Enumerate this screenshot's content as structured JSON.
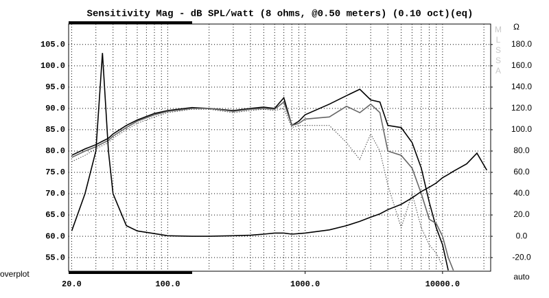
{
  "chart_data": {
    "type": "line",
    "title": "Sensitivity Mag - dB SPL/watt (8 ohms, @0.50 meters) (0.10 oct)(eq)",
    "unit_label": "Ω",
    "watermark": [
      "M",
      "L",
      "S",
      "S",
      "A"
    ],
    "bottom_left_label": "overplot",
    "y2_bottom_label": "auto",
    "x_log": true,
    "grid": true,
    "xlim": [
      19,
      22400
    ],
    "xticks": [
      {
        "value": 20,
        "label": "20.0"
      },
      {
        "value": 100,
        "label": "100.0"
      },
      {
        "value": 1000,
        "label": "1000.0"
      },
      {
        "value": 10000,
        "label": "10000.0"
      }
    ],
    "x_grid": [
      20,
      30,
      40,
      50,
      60,
      70,
      80,
      90,
      100,
      200,
      300,
      400,
      500,
      600,
      700,
      800,
      900,
      1000,
      2000,
      3000,
      4000,
      5000,
      6000,
      7000,
      8000,
      9000,
      10000,
      20000
    ],
    "ylim": [
      51.8,
      109.8
    ],
    "yticks": [
      {
        "value": 55,
        "label": "55.0"
      },
      {
        "value": 60,
        "label": "60.0"
      },
      {
        "value": 65,
        "label": "65.0"
      },
      {
        "value": 70,
        "label": "70.0"
      },
      {
        "value": 75,
        "label": "75.0"
      },
      {
        "value": 80,
        "label": "80.0"
      },
      {
        "value": 85,
        "label": "85.0"
      },
      {
        "value": 90,
        "label": "90.0"
      },
      {
        "value": 95,
        "label": "95.0"
      },
      {
        "value": 100,
        "label": "100.0"
      },
      {
        "value": 105,
        "label": "105.0"
      }
    ],
    "y2lim": [
      -32.8,
      199.2
    ],
    "y2ticks": [
      {
        "value": -20,
        "label": "-20.0"
      },
      {
        "value": 0,
        "label": "0.0"
      },
      {
        "value": 20,
        "label": "20.0"
      },
      {
        "value": 40,
        "label": "40.0"
      },
      {
        "value": 60,
        "label": "60.0"
      },
      {
        "value": 80,
        "label": "80.0"
      },
      {
        "value": 100,
        "label": "100.0"
      },
      {
        "value": 120,
        "label": "120.0"
      },
      {
        "value": 140,
        "label": "140.0"
      },
      {
        "value": 160,
        "label": "160.0"
      },
      {
        "value": 180,
        "label": "180.0"
      }
    ],
    "x": [
      20,
      25,
      30,
      33.5,
      37,
      40,
      50,
      60,
      80,
      100,
      150,
      200,
      300,
      400,
      500,
      600,
      700,
      800,
      900,
      1000,
      1500,
      2000,
      2500,
      3000,
      3500,
      4000,
      5000,
      6000,
      7000,
      8000,
      9000,
      10000,
      11000,
      12000,
      15000,
      17800,
      21000
    ],
    "series": [
      {
        "color": "#000000",
        "style": "solid",
        "values": [
          79,
          80.5,
          81.5,
          82.3,
          83,
          84,
          86,
          87.3,
          88.8,
          89.5,
          90.2,
          90,
          89.5,
          90,
          90.3,
          90,
          92.5,
          86,
          87,
          88.5,
          91,
          93,
          94.5,
          92,
          91.5,
          86,
          85.5,
          82,
          76,
          68,
          62,
          58,
          52,
          null,
          null,
          null,
          null
        ]
      },
      {
        "color": "#666666",
        "style": "solid",
        "values": [
          78.5,
          80,
          81,
          81.8,
          82.5,
          83.5,
          85.5,
          87,
          88.5,
          89.3,
          90,
          90,
          89.3,
          89.8,
          90,
          89.8,
          91.5,
          86,
          86.5,
          87.5,
          88,
          90.5,
          89,
          91,
          89,
          80,
          79,
          76,
          70,
          64,
          63,
          60,
          55,
          52,
          null,
          null,
          null
        ]
      },
      {
        "color": "#444444",
        "style": "dotted",
        "values": [
          77.5,
          79,
          80.5,
          81.3,
          82,
          83,
          85,
          86.5,
          88,
          89,
          89.8,
          89.8,
          89,
          89.5,
          89.8,
          89.5,
          90,
          85.5,
          86,
          86,
          86,
          82,
          78,
          84,
          80,
          72,
          62,
          70,
          62,
          58,
          56,
          53,
          null,
          null,
          null,
          null,
          null
        ]
      },
      {
        "color": "#000000",
        "style": "solid",
        "axis": "y2",
        "values": [
          5,
          40,
          80,
          172,
          80,
          40,
          10,
          5,
          2.5,
          0.5,
          0,
          0,
          0.5,
          1,
          2,
          3,
          3,
          2,
          2.5,
          3,
          6,
          10,
          14,
          18,
          21,
          25,
          30,
          36,
          42,
          46,
          50,
          55,
          58,
          61,
          68,
          78,
          62
        ]
      }
    ]
  }
}
